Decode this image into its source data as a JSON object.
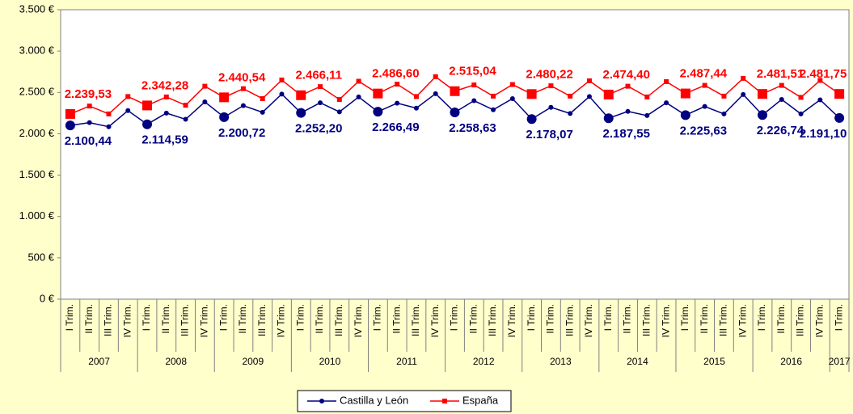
{
  "chart_data": {
    "type": "line",
    "categories": [
      "I Trim.",
      "II Trim.",
      "III Trim.",
      "IV Trim.",
      "I Trim.",
      "II Trim.",
      "III Trim.",
      "IV Trim.",
      "I Trim.",
      "II Trim.",
      "III Trim.",
      "IV Trim.",
      "I Trim.",
      "II Trim.",
      "III Trim.",
      "IV Trim.",
      "I Trim.",
      "II Trim.",
      "III Trim.",
      "IV Trim.",
      "I Trim.",
      "II Trim.",
      "III Trim.",
      "IV Trim.",
      "I Trim.",
      "II Trim.",
      "III Trim.",
      "IV Trim.",
      "I Trim.",
      "II Trim.",
      "III Trim.",
      "IV Trim.",
      "I Trim.",
      "II Trim.",
      "III Trim.",
      "IV Trim.",
      "I Trim.",
      "II Trim.",
      "III Trim.",
      "IV Trim.",
      "I Trim."
    ],
    "years": [
      "2007",
      "2008",
      "2009",
      "2010",
      "2011",
      "2012",
      "2013",
      "2014",
      "2015",
      "2016",
      "2017"
    ],
    "series": [
      {
        "name": "Castilla y León",
        "color": "#000080",
        "values": [
          2100.44,
          2135,
          2085,
          2280,
          2114.59,
          2250,
          2175,
          2385,
          2200.72,
          2340,
          2260,
          2480,
          2252.2,
          2375,
          2265,
          2445,
          2266.49,
          2370,
          2310,
          2485,
          2258.63,
          2400,
          2290,
          2425,
          2178.07,
          2320,
          2245,
          2450,
          2187.55,
          2270,
          2220,
          2375,
          2225.63,
          2330,
          2240,
          2475,
          2226.74,
          2415,
          2240,
          2410,
          2191.1
        ],
        "value_labels": [
          "2.100,44",
          null,
          null,
          null,
          "2.114,59",
          null,
          null,
          null,
          "2.200,72",
          null,
          null,
          null,
          "2.252,20",
          null,
          null,
          null,
          "2.266,49",
          null,
          null,
          null,
          "2.258,63",
          null,
          null,
          null,
          "2.178,07",
          null,
          null,
          null,
          "2.187,55",
          null,
          null,
          null,
          "2.225,63",
          null,
          null,
          null,
          "2.226,74",
          null,
          null,
          null,
          "2.191,10"
        ]
      },
      {
        "name": "España",
        "color": "#ff0000",
        "values": [
          2239.53,
          2335,
          2240,
          2450,
          2342.28,
          2445,
          2345,
          2575,
          2440.54,
          2545,
          2425,
          2650,
          2466.11,
          2570,
          2415,
          2635,
          2486.6,
          2600,
          2450,
          2690,
          2515.04,
          2590,
          2455,
          2595,
          2480.22,
          2580,
          2455,
          2640,
          2474.4,
          2575,
          2445,
          2630,
          2487.44,
          2585,
          2455,
          2670,
          2481.51,
          2585,
          2440,
          2645,
          2481.75
        ],
        "value_labels": [
          "2.239,53",
          null,
          null,
          null,
          "2.342,28",
          null,
          null,
          null,
          "2.440,54",
          null,
          null,
          null,
          "2.466,11",
          null,
          null,
          null,
          "2.486,60",
          null,
          null,
          null,
          "2.515,04",
          null,
          null,
          null,
          "2.480,22",
          null,
          null,
          null,
          "2.474,40",
          null,
          null,
          null,
          "2.487,44",
          null,
          null,
          null,
          "2.481,51",
          null,
          null,
          null,
          "2.481,75"
        ]
      }
    ],
    "ylim": [
      0,
      3500
    ],
    "yticks": [
      {
        "value": 0,
        "label": "0 €"
      },
      {
        "value": 500,
        "label": "500 €"
      },
      {
        "value": 1000,
        "label": "1.000 €"
      },
      {
        "value": 1500,
        "label": "1.500 €"
      },
      {
        "value": 2000,
        "label": "2.000 €"
      },
      {
        "value": 2500,
        "label": "2.500 €"
      },
      {
        "value": 3000,
        "label": "3.000 €"
      },
      {
        "value": 3500,
        "label": "3.500 €"
      }
    ],
    "grid": false,
    "legend": "bottom"
  }
}
